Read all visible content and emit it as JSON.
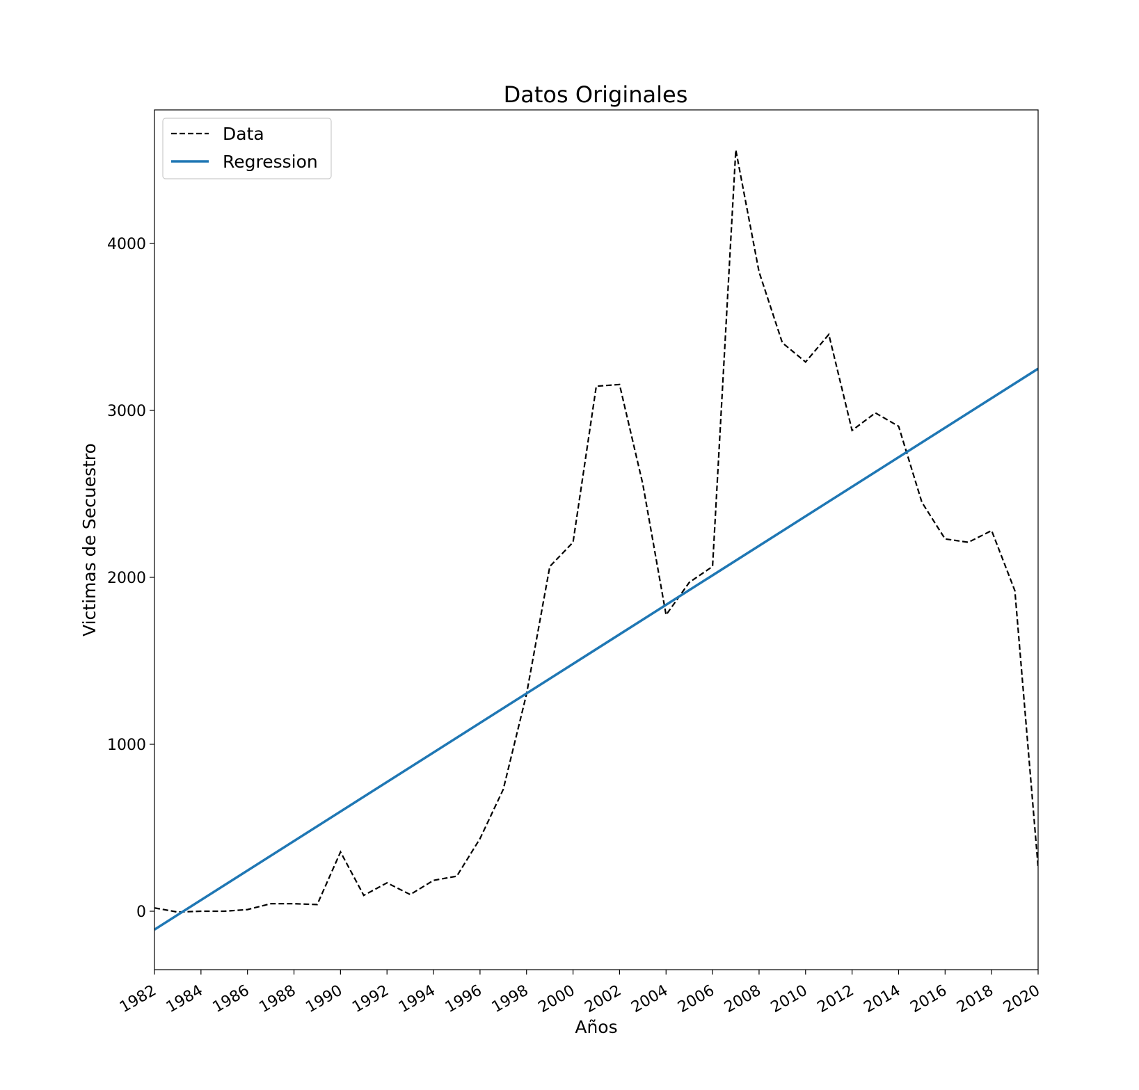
{
  "chart_data": {
    "type": "line",
    "title": "Datos Originales",
    "xlabel": "Años",
    "ylabel": "Victimas de Secuestro",
    "xlim": [
      1982,
      2020
    ],
    "ylim": [
      -350,
      4800
    ],
    "x_ticks": [
      1982,
      1984,
      1986,
      1988,
      1990,
      1992,
      1994,
      1996,
      1998,
      2000,
      2002,
      2004,
      2006,
      2008,
      2010,
      2012,
      2014,
      2016,
      2018,
      2020
    ],
    "y_ticks": [
      0,
      1000,
      2000,
      3000,
      4000
    ],
    "grid": false,
    "legend_position": "upper-left",
    "x": [
      1982,
      1983,
      1984,
      1985,
      1986,
      1987,
      1988,
      1989,
      1990,
      1991,
      1992,
      1993,
      1994,
      1995,
      1996,
      1997,
      1998,
      1999,
      2000,
      2001,
      2002,
      2003,
      2004,
      2005,
      2006,
      2007,
      2008,
      2009,
      2010,
      2011,
      2012,
      2013,
      2014,
      2015,
      2016,
      2017,
      2018,
      2019,
      2020
    ],
    "series": [
      {
        "name": "Data",
        "style": "dashed",
        "color": "#000000",
        "values": [
          20,
          -5,
          0,
          0,
          10,
          45,
          45,
          40,
          355,
          95,
          170,
          100,
          185,
          210,
          435,
          730,
          1300,
          2065,
          2210,
          3145,
          3155,
          2560,
          1775,
          1970,
          2065,
          4560,
          3830,
          3405,
          3290,
          3455,
          2880,
          2985,
          2905,
          2450,
          2230,
          2210,
          2280,
          1920,
          265
        ]
      },
      {
        "name": "Regression",
        "style": "solid",
        "color": "#1f77b4",
        "values_at_xlim": [
          -110,
          3250
        ]
      }
    ]
  }
}
